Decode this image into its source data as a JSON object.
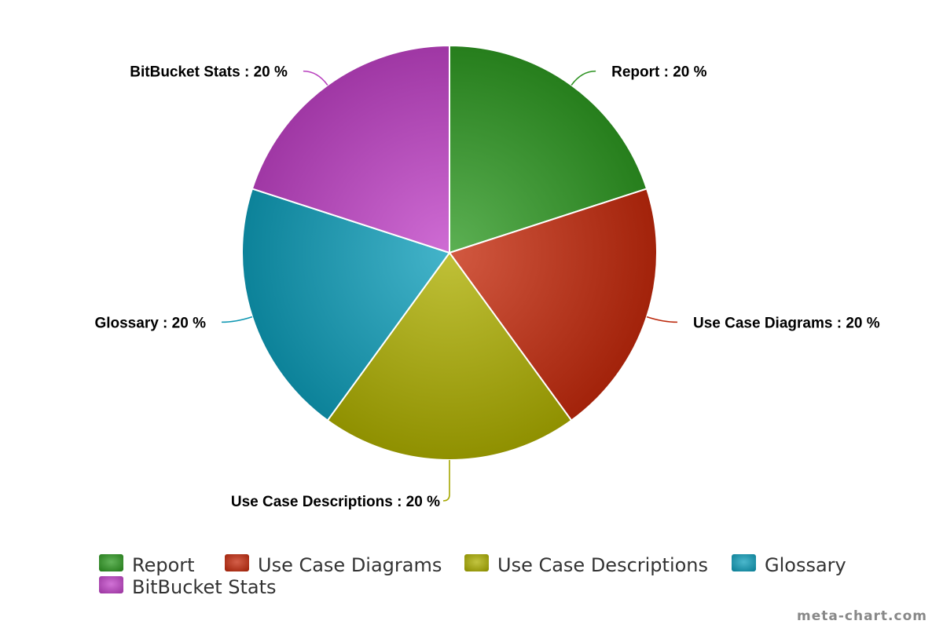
{
  "chart_data": {
    "type": "pie",
    "categories": [
      "Report",
      "Use Case Diagrams",
      "Use Case Descriptions",
      "Glossary",
      "BitBucket Stats"
    ],
    "values": [
      20,
      20,
      20,
      20,
      20
    ],
    "unit": "%",
    "data_labels": [
      "Report : 20 %",
      "Use Case Diagrams : 20 %",
      "Use Case Descriptions : 20 %",
      "Glossary : 20 %",
      "BitBucket Stats : 20 %"
    ],
    "colors": [
      "#2e9a22",
      "#c52a0c",
      "#aeb000",
      "#0f9fbb",
      "#c243c8"
    ],
    "legend": [
      "Report",
      "Use Case Diagrams",
      "Use Case Descriptions",
      "Glossary",
      "BitBucket Stats"
    ],
    "legend_position": "bottom",
    "start_angle": "top, clockwise"
  },
  "credit": "meta-chart.com"
}
